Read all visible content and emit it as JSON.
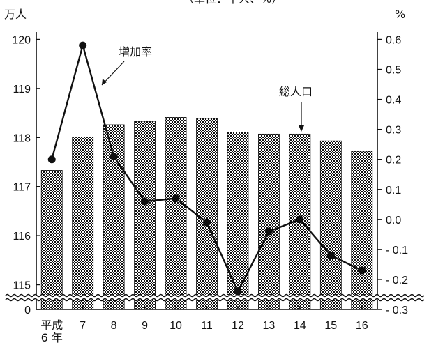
{
  "chart_data": {
    "type": "bar",
    "title_fragment": "（単位：千人、%）",
    "left_axis_unit": "万人",
    "right_axis_unit": "%",
    "categories": [
      "平成\n6年",
      "7",
      "8",
      "9",
      "10",
      "11",
      "12",
      "13",
      "14",
      "15",
      "16"
    ],
    "left_ticks": [
      "0",
      "115",
      "116",
      "117",
      "118",
      "119",
      "120"
    ],
    "right_ticks": [
      "- 0.3",
      "- 0.2",
      "- 0.1",
      "0.0",
      "0.1",
      "0.2",
      "0.3",
      "0.4",
      "0.5",
      "0.6"
    ],
    "series": [
      {
        "name": "総人口",
        "kind": "bar",
        "axis": "left",
        "values": [
          117.33,
          118.01,
          118.26,
          118.33,
          118.41,
          118.39,
          118.11,
          118.07,
          118.07,
          117.93,
          117.72
        ]
      },
      {
        "name": "増加率",
        "kind": "line",
        "axis": "right",
        "values": [
          0.2,
          0.58,
          0.21,
          0.06,
          0.07,
          -0.01,
          -0.24,
          -0.04,
          0.0,
          -0.12,
          -0.17
        ]
      }
    ],
    "left_ylim": [
      114.86,
      120
    ],
    "right_ylim": [
      -0.3,
      0.6
    ],
    "axis_break": true,
    "annotations": [
      {
        "text": "増加率",
        "series": "増加率"
      },
      {
        "text": "総人口",
        "series": "総人口"
      }
    ]
  }
}
